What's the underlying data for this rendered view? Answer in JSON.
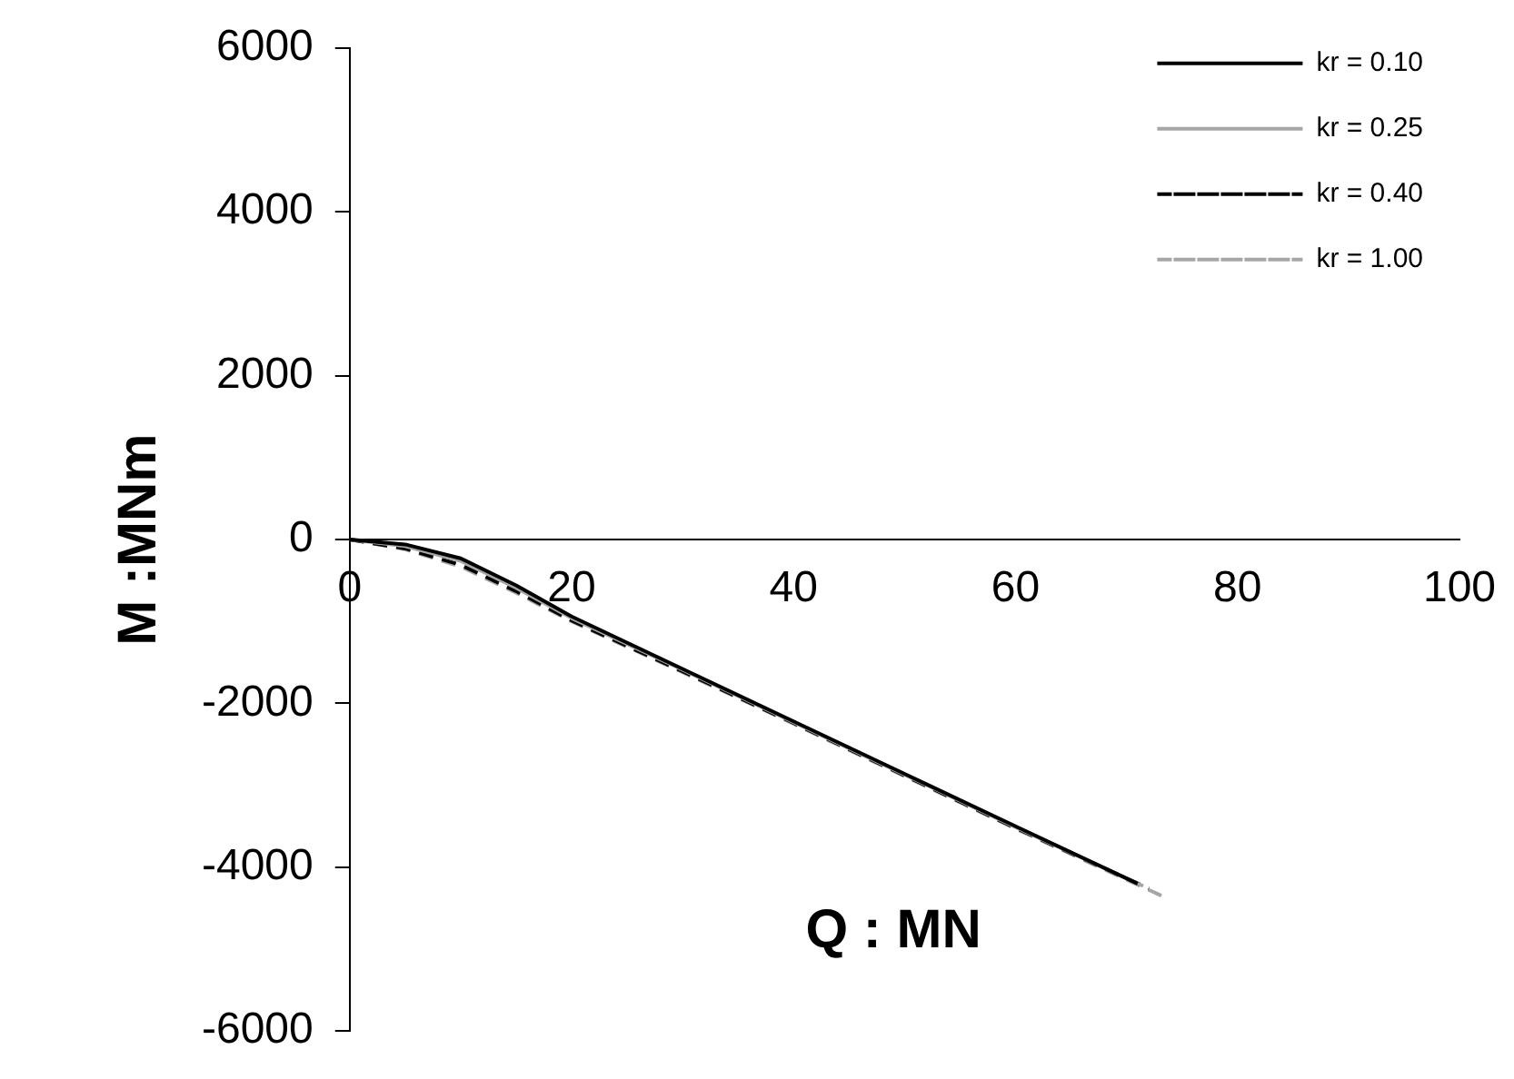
{
  "chart_data": {
    "type": "line",
    "xlabel": "Q : MN",
    "ylabel": "M :MNm",
    "xlim": [
      0,
      100
    ],
    "xticks": [
      0,
      20,
      40,
      60,
      80,
      100
    ],
    "ylim": [
      -6000,
      6000
    ],
    "yticks": [
      -6000,
      -4000,
      -2000,
      0,
      2000,
      4000,
      6000
    ],
    "grid": false,
    "legend": "top right",
    "marker": "none",
    "series": [
      {
        "name": "kr = 0.10",
        "color": "#000000",
        "line_style": "solid",
        "x": [
          0,
          5,
          10,
          15,
          20,
          30,
          40,
          50,
          60,
          71
        ],
        "values": [
          0,
          -60,
          -230,
          -560,
          -940,
          -1580,
          -2220,
          -2860,
          -3500,
          -4200
        ]
      },
      {
        "name": "kr = 0.25",
        "color": "#a6a6a6",
        "line_style": "solid",
        "x": [
          0,
          5,
          10,
          15,
          20,
          30,
          40,
          50,
          60,
          71.5
        ],
        "values": [
          0,
          -80,
          -260,
          -590,
          -960,
          -1590,
          -2230,
          -2870,
          -3510,
          -4230
        ]
      },
      {
        "name": "kr = 0.40",
        "color": "#000000",
        "line_style": "dashed",
        "x": [
          0,
          5,
          10,
          15,
          20,
          30,
          40,
          50,
          60,
          72
        ],
        "values": [
          0,
          -110,
          -310,
          -630,
          -990,
          -1610,
          -2240,
          -2880,
          -3520,
          -4260
        ]
      },
      {
        "name": "kr = 1.00",
        "color": "#a6a6a6",
        "line_style": "dashed",
        "x": [
          0,
          5,
          10,
          15,
          20,
          30,
          40,
          50,
          60,
          73.5
        ],
        "values": [
          0,
          -120,
          -330,
          -650,
          -1000,
          -1620,
          -2250,
          -2890,
          -3530,
          -4370
        ]
      }
    ]
  }
}
